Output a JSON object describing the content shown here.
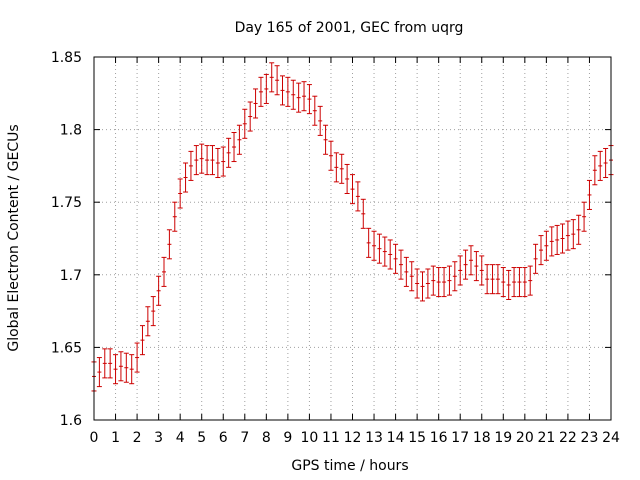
{
  "chart_data": {
    "type": "scatter",
    "title": "Day 165 of 2001, GEC from uqrg",
    "xlabel": "GPS time / hours",
    "ylabel": "Global Electron Content / GECUs",
    "xlim": [
      0,
      24
    ],
    "ylim": [
      1.6,
      1.85
    ],
    "xticks": [
      0,
      1,
      2,
      3,
      4,
      5,
      6,
      7,
      8,
      9,
      10,
      11,
      12,
      13,
      14,
      15,
      16,
      17,
      18,
      19,
      20,
      21,
      22,
      23,
      24
    ],
    "xtick_labels": [
      "0",
      "1",
      "2",
      "3",
      "4",
      "5",
      "6",
      "7",
      "8",
      "9",
      "10",
      "11",
      "12",
      "13",
      "14",
      "15",
      "16",
      "17",
      "18",
      "19",
      "20",
      "21",
      "22",
      "23",
      "24"
    ],
    "yticks": [
      1.6,
      1.65,
      1.7,
      1.75,
      1.8,
      1.85
    ],
    "ytick_labels": [
      "1.6",
      "1.65",
      "1.7",
      "1.75",
      "1.8",
      "1.85"
    ],
    "grid": true,
    "error_bar": 0.01,
    "marker_color": "#cc0000",
    "series": [
      {
        "name": "GEC",
        "x": [
          0.0,
          0.25,
          0.5,
          0.75,
          1.0,
          1.25,
          1.5,
          1.75,
          2.0,
          2.25,
          2.5,
          2.75,
          3.0,
          3.25,
          3.5,
          3.75,
          4.0,
          4.25,
          4.5,
          4.75,
          5.0,
          5.25,
          5.5,
          5.75,
          6.0,
          6.25,
          6.5,
          6.75,
          7.0,
          7.25,
          7.5,
          7.75,
          8.0,
          8.25,
          8.5,
          8.75,
          9.0,
          9.25,
          9.5,
          9.75,
          10.0,
          10.25,
          10.5,
          10.75,
          11.0,
          11.25,
          11.5,
          11.75,
          12.0,
          12.25,
          12.5,
          12.75,
          13.0,
          13.25,
          13.5,
          13.75,
          14.0,
          14.25,
          14.5,
          14.75,
          15.0,
          15.25,
          15.5,
          15.75,
          16.0,
          16.25,
          16.5,
          16.75,
          17.0,
          17.25,
          17.5,
          17.75,
          18.0,
          18.25,
          18.5,
          18.75,
          19.0,
          19.25,
          19.5,
          19.75,
          20.0,
          20.25,
          20.5,
          20.75,
          21.0,
          21.25,
          21.5,
          21.75,
          22.0,
          22.25,
          22.5,
          22.75,
          23.0,
          23.25,
          23.5,
          23.75,
          24.0
        ],
        "y": [
          1.63,
          1.633,
          1.639,
          1.639,
          1.635,
          1.637,
          1.636,
          1.635,
          1.643,
          1.655,
          1.668,
          1.675,
          1.689,
          1.702,
          1.721,
          1.74,
          1.756,
          1.767,
          1.775,
          1.779,
          1.78,
          1.779,
          1.779,
          1.777,
          1.778,
          1.784,
          1.788,
          1.793,
          1.804,
          1.809,
          1.818,
          1.826,
          1.828,
          1.836,
          1.834,
          1.827,
          1.826,
          1.824,
          1.822,
          1.823,
          1.821,
          1.813,
          1.806,
          1.793,
          1.782,
          1.774,
          1.773,
          1.766,
          1.759,
          1.754,
          1.742,
          1.722,
          1.72,
          1.718,
          1.716,
          1.714,
          1.711,
          1.707,
          1.702,
          1.699,
          1.694,
          1.692,
          1.694,
          1.696,
          1.695,
          1.695,
          1.696,
          1.699,
          1.703,
          1.707,
          1.71,
          1.706,
          1.703,
          1.697,
          1.697,
          1.697,
          1.695,
          1.693,
          1.695,
          1.695,
          1.695,
          1.696,
          1.711,
          1.717,
          1.72,
          1.723,
          1.724,
          1.725,
          1.727,
          1.728,
          1.731,
          1.74,
          1.755,
          1.772,
          1.775,
          1.777,
          1.779
        ]
      }
    ]
  }
}
